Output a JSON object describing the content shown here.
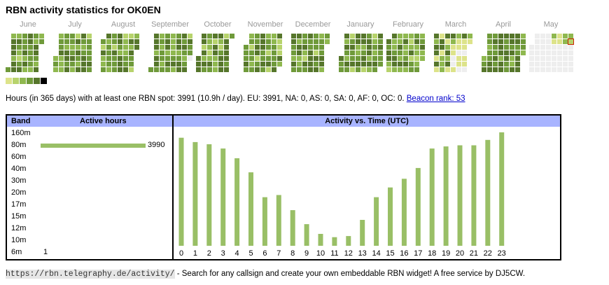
{
  "title": "RBN activity statistics for OK0EN",
  "months": [
    "June",
    "July",
    "August",
    "September",
    "October",
    "November",
    "December",
    "January",
    "February",
    "March",
    "April",
    "May"
  ],
  "colors": {
    "empty": "#eeeeee",
    "levels": [
      "#dde38a",
      "#b7d36c",
      "#8fb84f",
      "#6f9a3a",
      "#56762b",
      "#000000"
    ],
    "today_border": "#cc2200",
    "band_bar": "#99bf66",
    "time_bar": "#99bf66",
    "header_bg": "#a8b4ff"
  },
  "summary": {
    "text": "Hours (in 365 days) with at least one RBN spot: 3991 (10.9h / day). EU: 3991, NA: 0, AS: 0, SA: 0, AF: 0, OC: 0.",
    "link": "Beacon rank: 53"
  },
  "band_table": {
    "header_band": "Band",
    "header_hours": "Active hours",
    "rows": [
      {
        "band": "160m",
        "hours": ""
      },
      {
        "band": "80m",
        "hours": "3990",
        "value": 3990
      },
      {
        "band": "60m",
        "hours": ""
      },
      {
        "band": "40m",
        "hours": ""
      },
      {
        "band": "30m",
        "hours": ""
      },
      {
        "band": "20m",
        "hours": ""
      },
      {
        "band": "17m",
        "hours": ""
      },
      {
        "band": "15m",
        "hours": ""
      },
      {
        "band": "12m",
        "hours": ""
      },
      {
        "band": "10m",
        "hours": ""
      },
      {
        "band": "6m",
        "hours": "1",
        "value": 1
      }
    ]
  },
  "chart_data": {
    "type": "bar",
    "title": "Activity vs. Time (UTC)",
    "categories": [
      "0",
      "1",
      "2",
      "3",
      "4",
      "5",
      "6",
      "7",
      "8",
      "9",
      "10",
      "11",
      "12",
      "13",
      "14",
      "15",
      "16",
      "17",
      "18",
      "19",
      "20",
      "21",
      "22",
      "23"
    ],
    "values": [
      100,
      96,
      94,
      90,
      81,
      68,
      45,
      47,
      33,
      20,
      11,
      8,
      9,
      24,
      45,
      54,
      62,
      72,
      90,
      92,
      93,
      93,
      98,
      105
    ],
    "ylim": [
      0,
      105
    ]
  },
  "footer": {
    "url": "https://rbn.telegraphy.de/activity/",
    "text": " - Search for any callsign and create your own embeddable RBN widget! A free service by DJ5CW."
  }
}
